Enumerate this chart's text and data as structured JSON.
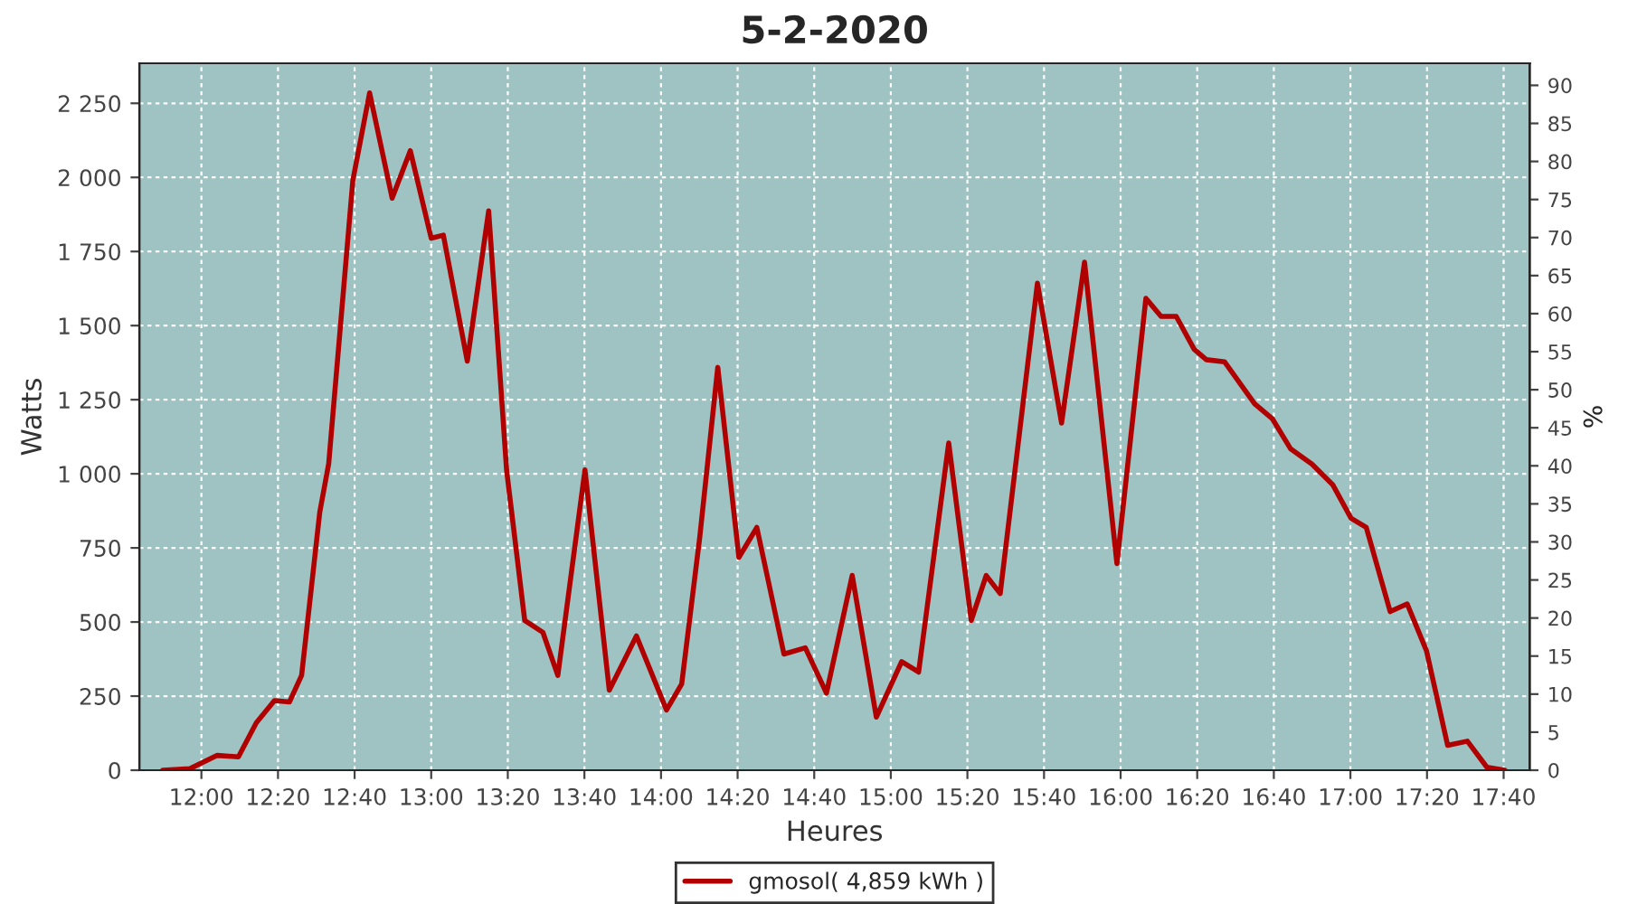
{
  "chart_data": {
    "type": "line",
    "title": "5-2-2020",
    "xlabel": "Heures",
    "ylabel": "Watts",
    "y2label": "%",
    "x": [
      11.832,
      11.95,
      12.069,
      12.161,
      12.239,
      12.318,
      12.383,
      12.436,
      12.515,
      12.554,
      12.659,
      12.732,
      12.83,
      12.909,
      13.0,
      13.053,
      13.157,
      13.25,
      13.328,
      13.407,
      13.486,
      13.551,
      13.669,
      13.775,
      13.893,
      14.024,
      14.09,
      14.169,
      14.247,
      14.339,
      14.417,
      14.535,
      14.628,
      14.72,
      14.832,
      14.937,
      15.047,
      15.121,
      15.252,
      15.35,
      15.415,
      15.476,
      15.638,
      15.743,
      15.843,
      15.984,
      16.11,
      16.176,
      16.242,
      16.32,
      16.373,
      16.452,
      16.583,
      16.661,
      16.74,
      16.832,
      16.924,
      17.003,
      17.069,
      17.173,
      17.247,
      17.331,
      17.423,
      17.509,
      17.594,
      17.672
    ],
    "series": [
      {
        "name": "gmosol( 4,859 kWh )",
        "color": "#b00000",
        "values": [
          0,
          5,
          50,
          45,
          160,
          235,
          230,
          320,
          870,
          1035,
          1990,
          2285,
          1930,
          2090,
          1795,
          1805,
          1380,
          1887,
          1013,
          505,
          465,
          320,
          1013,
          270,
          453,
          203,
          291,
          789,
          1359,
          718,
          819,
          392,
          413,
          260,
          657,
          179,
          366,
          331,
          1104,
          505,
          657,
          596,
          1643,
          1171,
          1714,
          697,
          1592,
          1531,
          1531,
          1420,
          1385,
          1378,
          1236,
          1185,
          1084,
          1033,
          962,
          850,
          819,
          535,
          561,
          403,
          84,
          98,
          10,
          0
        ]
      }
    ],
    "xlim": [
      11.73,
      17.78
    ],
    "xticks": [
      {
        "value": 12,
        "label": "12:00"
      },
      {
        "value": 12.3333,
        "label": "12:20"
      },
      {
        "value": 12.6667,
        "label": "12:40"
      },
      {
        "value": 13,
        "label": "13:00"
      },
      {
        "value": 13.3333,
        "label": "13:20"
      },
      {
        "value": 13.6667,
        "label": "13:40"
      },
      {
        "value": 14,
        "label": "14:00"
      },
      {
        "value": 14.3333,
        "label": "14:20"
      },
      {
        "value": 14.6667,
        "label": "14:40"
      },
      {
        "value": 15,
        "label": "15:00"
      },
      {
        "value": 15.3333,
        "label": "15:20"
      },
      {
        "value": 15.6667,
        "label": "15:40"
      },
      {
        "value": 16,
        "label": "16:00"
      },
      {
        "value": 16.3333,
        "label": "16:20"
      },
      {
        "value": 16.6667,
        "label": "16:40"
      },
      {
        "value": 17,
        "label": "17:00"
      },
      {
        "value": 17.3333,
        "label": "17:20"
      },
      {
        "value": 17.6667,
        "label": "17:40"
      }
    ],
    "ylim": [
      0,
      2385
    ],
    "yticks": [
      0,
      250,
      500,
      750,
      {
        "value": 1000,
        "label": "1 000"
      },
      {
        "value": 1250,
        "label": "1 250"
      },
      {
        "value": 1500,
        "label": "1 500"
      },
      {
        "value": 1750,
        "label": "1 750"
      },
      {
        "value": 2000,
        "label": "2 000"
      },
      {
        "value": 2250,
        "label": "2 250"
      }
    ],
    "y2lim": [
      0,
      92.9
    ],
    "y2ticks": [
      0,
      5,
      10,
      15,
      20,
      25,
      30,
      35,
      40,
      45,
      50,
      55,
      60,
      65,
      70,
      75,
      80,
      85,
      90
    ],
    "grid": true,
    "legend": "bottom",
    "marker": "none",
    "line_style": "solid"
  }
}
